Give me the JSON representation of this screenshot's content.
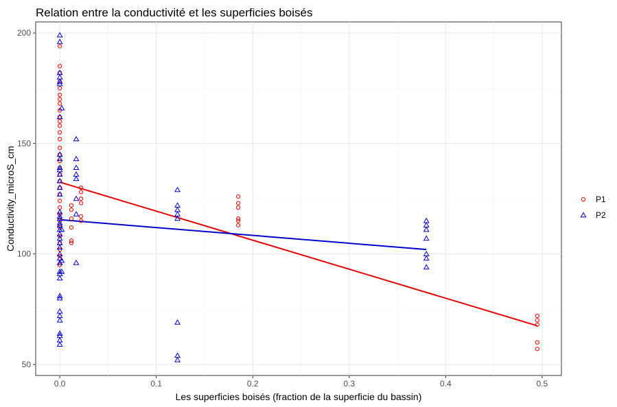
{
  "chart_data": {
    "type": "scatter",
    "title": "Relation entre la conductivité et les superficies boisés",
    "xlabel": "Les superficies boisés (fraction de la superficie du bassin)",
    "ylabel": "Conductivity_microS_cm",
    "xlim": [
      -0.025,
      0.52
    ],
    "ylim": [
      45,
      205
    ],
    "x_ticks": [
      0.0,
      0.1,
      0.2,
      0.3,
      0.4,
      0.5
    ],
    "x_tick_labels": [
      "0.0",
      "0.1",
      "0.2",
      "0.3",
      "0.4",
      "0.5"
    ],
    "y_ticks": [
      50,
      100,
      150,
      200
    ],
    "y_tick_labels": [
      "50",
      "100",
      "150",
      "200"
    ],
    "grid": true,
    "legend_position": "right",
    "series": [
      {
        "name": "P1",
        "color": "#e00000",
        "marker": "circle",
        "points": [
          [
            0.0,
            185
          ],
          [
            0.0,
            182
          ],
          [
            0.0,
            178
          ],
          [
            0.0,
            175
          ],
          [
            0.0,
            172
          ],
          [
            0.0,
            170
          ],
          [
            0.0,
            168
          ],
          [
            0.0,
            165
          ],
          [
            0.0,
            162
          ],
          [
            0.0,
            158
          ],
          [
            0.0,
            155
          ],
          [
            0.0,
            152
          ],
          [
            0.0,
            148
          ],
          [
            0.0,
            145
          ],
          [
            0.0,
            142
          ],
          [
            0.0,
            139
          ],
          [
            0.0,
            136
          ],
          [
            0.0,
            133
          ],
          [
            0.0,
            130
          ],
          [
            0.0,
            127
          ],
          [
            0.0,
            124
          ],
          [
            0.0,
            121
          ],
          [
            0.0,
            118
          ],
          [
            0.0,
            115
          ],
          [
            0.0,
            112
          ],
          [
            0.0,
            108
          ],
          [
            0.0,
            105
          ],
          [
            0.0,
            102
          ],
          [
            0.0,
            99
          ],
          [
            0.0,
            95
          ],
          [
            0.0,
            194
          ],
          [
            0.0,
            160
          ],
          [
            0.012,
            122
          ],
          [
            0.012,
            120
          ],
          [
            0.012,
            116
          ],
          [
            0.012,
            112
          ],
          [
            0.012,
            106
          ],
          [
            0.012,
            105
          ],
          [
            0.022,
            130
          ],
          [
            0.022,
            128
          ],
          [
            0.022,
            125
          ],
          [
            0.022,
            123
          ],
          [
            0.022,
            117
          ],
          [
            0.022,
            115
          ],
          [
            0.185,
            126
          ],
          [
            0.185,
            123
          ],
          [
            0.185,
            121
          ],
          [
            0.185,
            116
          ],
          [
            0.185,
            115
          ],
          [
            0.185,
            113
          ],
          [
            0.495,
            72
          ],
          [
            0.495,
            70
          ],
          [
            0.495,
            68
          ],
          [
            0.495,
            60
          ],
          [
            0.495,
            57
          ]
        ],
        "fit": [
          [
            0.0,
            132.5
          ],
          [
            0.495,
            67.5
          ]
        ]
      },
      {
        "name": "P2",
        "color": "#0000c8",
        "marker": "triangle",
        "points": [
          [
            0.0,
            199
          ],
          [
            0.0,
            196
          ],
          [
            0.0,
            182
          ],
          [
            0.0,
            180
          ],
          [
            0.0,
            178
          ],
          [
            0.0,
            177
          ],
          [
            0.002,
            166
          ],
          [
            0.0,
            162
          ],
          [
            0.0,
            145
          ],
          [
            0.0,
            143
          ],
          [
            0.0,
            139
          ],
          [
            0.0,
            138
          ],
          [
            0.0,
            136
          ],
          [
            0.0,
            133
          ],
          [
            0.0,
            130
          ],
          [
            0.0,
            127
          ],
          [
            0.0,
            119
          ],
          [
            0.0,
            117
          ],
          [
            0.0,
            116
          ],
          [
            0.0,
            114
          ],
          [
            0.0,
            113
          ],
          [
            0.0,
            111
          ],
          [
            0.0,
            109
          ],
          [
            0.0,
            107
          ],
          [
            0.0,
            105
          ],
          [
            0.0,
            103
          ],
          [
            0.0,
            100
          ],
          [
            0.0,
            98
          ],
          [
            0.0,
            96
          ],
          [
            0.0,
            92
          ],
          [
            0.0,
            91
          ],
          [
            0.0,
            89
          ],
          [
            0.0,
            81
          ],
          [
            0.0,
            80
          ],
          [
            0.0,
            74
          ],
          [
            0.0,
            72
          ],
          [
            0.0,
            70
          ],
          [
            0.0,
            64
          ],
          [
            0.0,
            63
          ],
          [
            0.0,
            61
          ],
          [
            0.0,
            59
          ],
          [
            0.002,
            111
          ],
          [
            0.002,
            97
          ],
          [
            0.002,
            92
          ],
          [
            0.017,
            152
          ],
          [
            0.017,
            143
          ],
          [
            0.017,
            139
          ],
          [
            0.017,
            136
          ],
          [
            0.017,
            134
          ],
          [
            0.017,
            125
          ],
          [
            0.017,
            118
          ],
          [
            0.017,
            96
          ],
          [
            0.122,
            129
          ],
          [
            0.122,
            122
          ],
          [
            0.122,
            120
          ],
          [
            0.122,
            118
          ],
          [
            0.122,
            116
          ],
          [
            0.122,
            69
          ],
          [
            0.122,
            54
          ],
          [
            0.122,
            52
          ],
          [
            0.38,
            115
          ],
          [
            0.38,
            113
          ],
          [
            0.38,
            111
          ],
          [
            0.38,
            107
          ],
          [
            0.38,
            100
          ],
          [
            0.38,
            98
          ],
          [
            0.38,
            94
          ]
        ],
        "fit": [
          [
            0.0,
            115.5
          ],
          [
            0.38,
            102.0
          ]
        ]
      }
    ]
  }
}
